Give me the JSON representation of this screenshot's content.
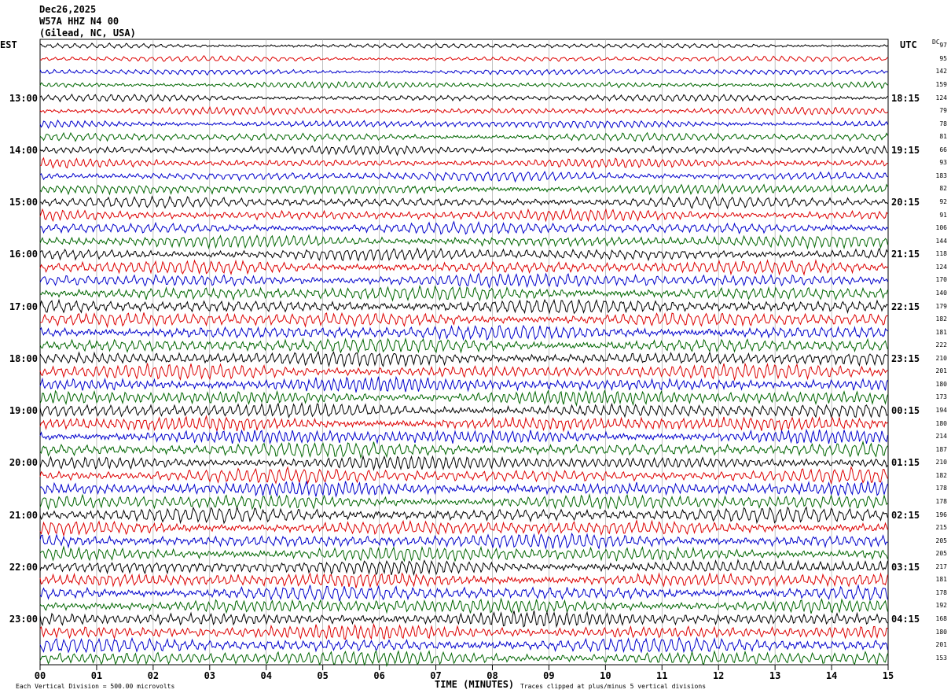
{
  "header": {
    "date": "Dec26,2025",
    "station": "W57A HHZ N4 00",
    "location": "(Gilead, NC, USA)"
  },
  "left_axis_label": "EST",
  "right_axis_label": "UTC",
  "dc_label": "DC",
  "chart_data": {
    "type": "line",
    "title": "",
    "xlabel": "TIME (MINUTES)",
    "ylabel": "",
    "x_range": [
      0,
      15
    ],
    "x_ticks": [
      "00",
      "01",
      "02",
      "03",
      "04",
      "05",
      "06",
      "07",
      "08",
      "09",
      "10",
      "11",
      "12",
      "13",
      "14",
      "15"
    ],
    "trace_count": 48,
    "trace_colors": [
      "#000000",
      "#dd0000",
      "#0000cc",
      "#006600"
    ],
    "left_hour_labels": [
      "13:00",
      "14:00",
      "15:00",
      "16:00",
      "17:00",
      "18:00",
      "19:00",
      "20:00",
      "21:00",
      "22:00",
      "23:00"
    ],
    "right_hour_labels": [
      "18:15",
      "19:15",
      "20:15",
      "21:15",
      "22:15",
      "23:15",
      "00:15",
      "01:15",
      "02:15",
      "03:15",
      "04:15"
    ],
    "dc_offsets": [
      97,
      95,
      142,
      159,
      124,
      79,
      78,
      81,
      66,
      93,
      183,
      82,
      92,
      91,
      106,
      144,
      118,
      124,
      170,
      140,
      179,
      182,
      181,
      222,
      210,
      201,
      180,
      173,
      194,
      180,
      214,
      187,
      210,
      182,
      178,
      178,
      196,
      215,
      205,
      205,
      217,
      181,
      178,
      192,
      168,
      180,
      201,
      153
    ],
    "grid": true
  },
  "footer": {
    "vertical_division": "Each Vertical Division =  500.00 microvolts",
    "clip_note": "Traces clipped at plus/minus 5 vertical divisions"
  }
}
